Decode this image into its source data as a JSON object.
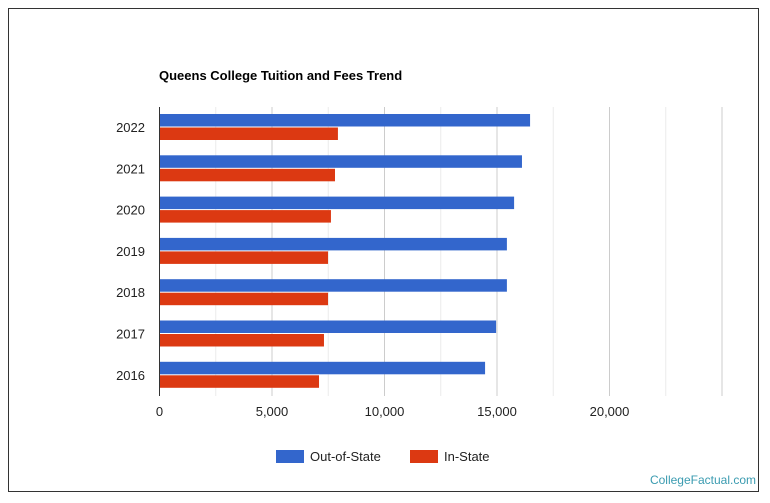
{
  "chart_data": {
    "type": "bar",
    "orientation": "horizontal",
    "title": "Queens College Tuition and Fees Trend",
    "categories": [
      "2022",
      "2021",
      "2020",
      "2019",
      "2018",
      "2017",
      "2016"
    ],
    "series": [
      {
        "name": "Out-of-State",
        "color": "#3366cc",
        "values": [
          16470,
          16110,
          15760,
          15440,
          15440,
          14960,
          14470
        ]
      },
      {
        "name": "In-State",
        "color": "#dc3912",
        "values": [
          7930,
          7800,
          7620,
          7490,
          7490,
          7310,
          7090
        ]
      }
    ],
    "xlim": [
      0,
      25000
    ],
    "xticks": [
      0,
      5000,
      10000,
      15000,
      20000
    ],
    "xtick_labels": [
      "0",
      "5,000",
      "10,000",
      "15,000",
      "20,000"
    ],
    "grid": true,
    "legend": "bottom"
  },
  "watermark": "CollegeFactual.com"
}
